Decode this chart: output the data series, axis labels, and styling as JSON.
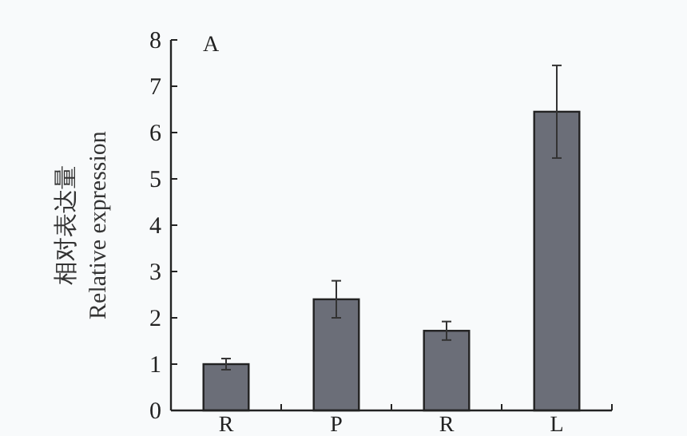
{
  "chart_data": {
    "type": "bar",
    "ylabel": "相对表达量\nRelative expression",
    "annotations": [
      "A"
    ],
    "categories": [
      "R",
      "P",
      "R",
      "L"
    ],
    "values": [
      1.0,
      2.4,
      1.72,
      6.45
    ],
    "errors": [
      0.12,
      0.4,
      0.2,
      1.0
    ],
    "color": "#6b6e78",
    "ylim": [
      0,
      8
    ],
    "yticks": [
      0,
      1,
      2,
      3,
      4,
      5,
      6,
      7,
      8
    ],
    "grid": false
  }
}
